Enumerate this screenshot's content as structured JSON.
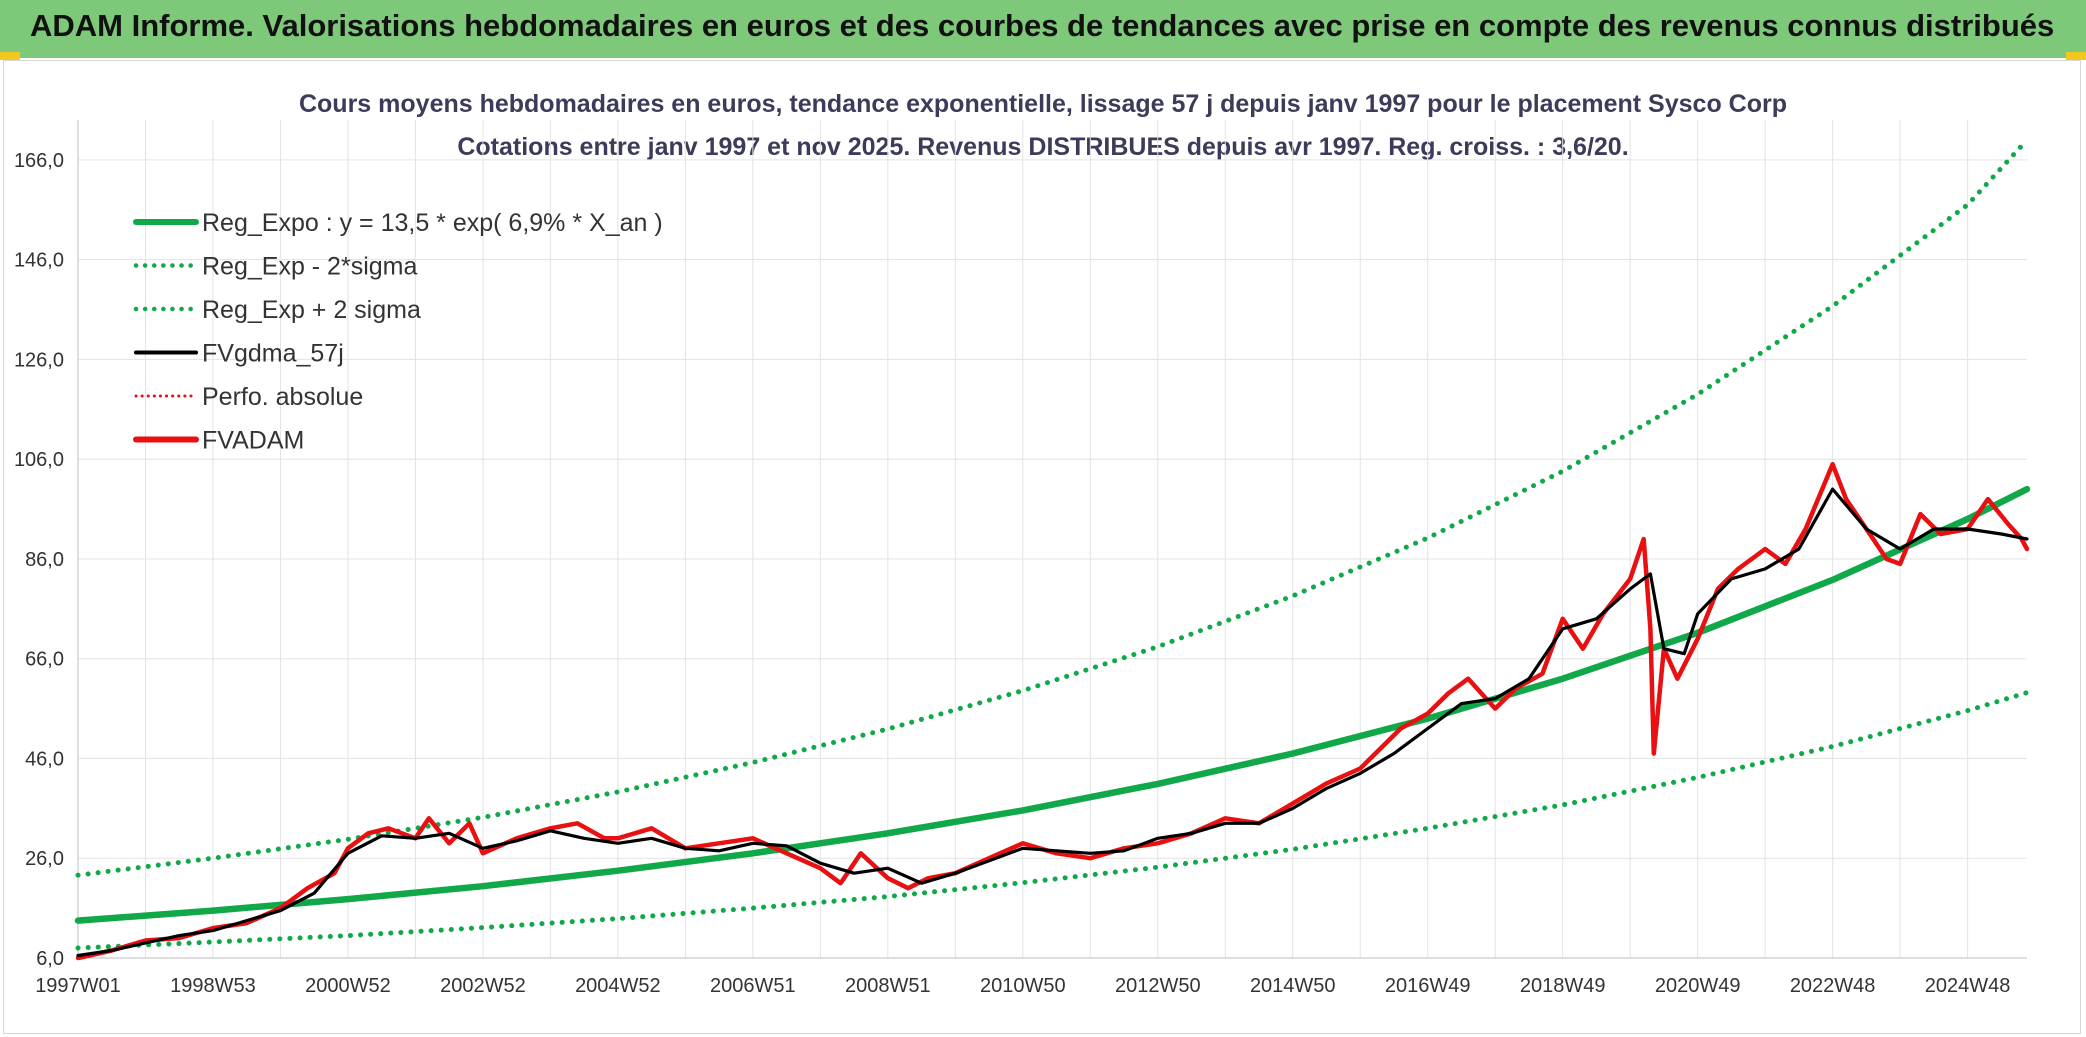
{
  "banner": {
    "title": "ADAM Informe. Valorisations hebdomadaires en euros et des courbes de tendances avec prise en compte des revenus connus distribués"
  },
  "colors": {
    "banner": "#7ec87a",
    "reg": "#11a84a",
    "fvgdma": "#000000",
    "fvadam": "#e81010",
    "perfo": "#e81010"
  },
  "chart_data": {
    "type": "line",
    "title": "Cours moyens hebdomadaires en euros, tendance exponentielle, lissage 57 j depuis janv 1997 pour le placement Sysco Corp",
    "subtitle": "Cotations entre janv 1997 et nov 2025. Revenus DISTRIBUES depuis avr 1997. Reg. croiss. : 3,6/20.",
    "xlim": [
      1997.0,
      2025.88
    ],
    "ylim": [
      6,
      174
    ],
    "y_ticks": [
      6,
      26,
      46,
      66,
      86,
      106,
      126,
      146,
      166
    ],
    "y_tick_labels": [
      "6,0",
      "26,0",
      "46,0",
      "66,0",
      "86,0",
      "106,0",
      "126,0",
      "146,0",
      "166,0"
    ],
    "x_ticks": [
      {
        "label": "1997W01",
        "x": 1997.0
      },
      {
        "label": "1998W53",
        "x": 1999.0
      },
      {
        "label": "2000W52",
        "x": 2001.0
      },
      {
        "label": "2002W52",
        "x": 2003.0
      },
      {
        "label": "2004W52",
        "x": 2005.0
      },
      {
        "label": "2006W51",
        "x": 2007.0
      },
      {
        "label": "2008W51",
        "x": 2009.0
      },
      {
        "label": "2010W50",
        "x": 2011.0
      },
      {
        "label": "2012W50",
        "x": 2013.0
      },
      {
        "label": "2014W50",
        "x": 2015.0
      },
      {
        "label": "2016W49",
        "x": 2017.0
      },
      {
        "label": "2018W49",
        "x": 2019.0
      },
      {
        "label": "2020W49",
        "x": 2021.0
      },
      {
        "label": "2022W48",
        "x": 2023.0
      },
      {
        "label": "2024W48",
        "x": 2025.0
      }
    ],
    "grid": true,
    "legend_position": "top-left",
    "series": [
      {
        "name": "Reg_Expo : y = 13,5 * exp( 6,9% *  X_an )",
        "style": "solid-thick",
        "color": "#11a84a",
        "x": [
          1997,
          1999,
          2001,
          2003,
          2005,
          2007,
          2009,
          2011,
          2013,
          2015,
          2017,
          2019,
          2021,
          2023,
          2025,
          2025.88
        ],
        "y": [
          13.5,
          15.5,
          17.8,
          20.4,
          23.5,
          27.0,
          31.0,
          35.6,
          40.9,
          47.0,
          54.0,
          62.0,
          71.2,
          81.8,
          94.0,
          100.0
        ]
      },
      {
        "name": "Reg_Exp - 2*sigma",
        "style": "dotted",
        "color": "#11a84a",
        "x": [
          1997,
          1999,
          2001,
          2003,
          2005,
          2007,
          2009,
          2011,
          2013,
          2015,
          2017,
          2019,
          2021,
          2023,
          2025,
          2025.88
        ],
        "y": [
          8.0,
          9.2,
          10.5,
          12.1,
          13.9,
          16.0,
          18.3,
          21.1,
          24.2,
          27.8,
          32.0,
          36.7,
          42.2,
          48.4,
          55.6,
          59.2
        ]
      },
      {
        "name": "Reg_Exp + 2 sigma",
        "style": "dotted",
        "color": "#11a84a",
        "x": [
          1997,
          1999,
          2001,
          2003,
          2005,
          2007,
          2009,
          2011,
          2013,
          2015,
          2017,
          2019,
          2021,
          2023,
          2025,
          2025.88
        ],
        "y": [
          22.6,
          26.0,
          29.8,
          34.2,
          39.3,
          45.2,
          51.9,
          59.6,
          68.4,
          78.6,
          90.2,
          103.6,
          119.0,
          136.7,
          157.0,
          170.0
        ]
      },
      {
        "name": "FVgdma_57j",
        "style": "solid",
        "color": "#000000",
        "x": [
          1997,
          1997.5,
          1998,
          1998.5,
          1999,
          1999.5,
          2000,
          2000.5,
          2001,
          2001.5,
          2002,
          2002.5,
          2003,
          2003.5,
          2004,
          2004.5,
          2005,
          2005.5,
          2006,
          2006.5,
          2007,
          2007.5,
          2008,
          2008.5,
          2009,
          2009.5,
          2010,
          2010.5,
          2011,
          2011.5,
          2012,
          2012.5,
          2013,
          2013.5,
          2014,
          2014.5,
          2015,
          2015.5,
          2016,
          2016.5,
          2017,
          2017.5,
          2018,
          2018.5,
          2019,
          2019.5,
          2020,
          2020.3,
          2020.5,
          2020.8,
          2021,
          2021.5,
          2022,
          2022.5,
          2023,
          2023.5,
          2024,
          2024.5,
          2025,
          2025.5,
          2025.88
        ],
        "y": [
          6.5,
          7.5,
          9,
          10.5,
          11.5,
          13.5,
          15.5,
          19,
          27,
          30.5,
          30,
          31,
          28,
          29.5,
          31.5,
          30,
          29,
          30,
          28,
          27.5,
          29,
          28.5,
          25,
          23,
          24,
          21,
          23,
          25.5,
          28,
          27.5,
          27,
          27.5,
          30,
          31,
          33,
          33,
          36,
          40,
          43,
          47,
          52,
          57,
          58,
          62,
          72,
          74,
          80,
          83,
          68,
          67,
          75,
          82,
          84,
          88,
          100,
          92,
          88,
          92,
          92,
          91,
          90
        ]
      },
      {
        "name": "Perfo. absolue",
        "style": "dotted",
        "color": "#e81010",
        "x": [
          1997,
          1997.5,
          1998,
          1998.5,
          1999,
          1999.5,
          2000,
          2000.5,
          2001,
          2001.5,
          2002,
          2002.5,
          2003,
          2003.5,
          2004,
          2004.5,
          2005,
          2005.5,
          2006,
          2006.5,
          2007,
          2007.5,
          2008,
          2008.5,
          2009,
          2009.5,
          2010,
          2010.5,
          2011,
          2011.5,
          2012,
          2012.5,
          2013,
          2013.5,
          2014,
          2014.5,
          2015,
          2015.5,
          2016,
          2016.5,
          2017,
          2017.5,
          2018,
          2018.5,
          2019,
          2019.5,
          2020,
          2020.3,
          2020.5,
          2020.8,
          2021,
          2021.5,
          2022,
          2022.5,
          2023,
          2023.5,
          2024,
          2024.5,
          2025,
          2025.5,
          2025.88
        ],
        "y": [
          6.5,
          7.5,
          9,
          10.5,
          11.5,
          13.5,
          15.5,
          19,
          27,
          30.5,
          30,
          31,
          28,
          29.5,
          31.5,
          30,
          29,
          30,
          28,
          27.5,
          29,
          28.5,
          25,
          23,
          24,
          21,
          23,
          25.5,
          28,
          27.5,
          27,
          27.5,
          30,
          31,
          33,
          33,
          36,
          40,
          43,
          47,
          52,
          57,
          58,
          62,
          72,
          74,
          80,
          83,
          68,
          67,
          75,
          82,
          84,
          88,
          100,
          92,
          88,
          92,
          92,
          91,
          90
        ]
      },
      {
        "name": "FVADAM",
        "style": "solid-thick",
        "color": "#e81010",
        "x": [
          1997,
          1997.5,
          1998,
          1998.5,
          1999,
          1999.5,
          2000,
          2000.4,
          2000.8,
          2001,
          2001.3,
          2001.6,
          2002,
          2002.2,
          2002.5,
          2002.8,
          2003,
          2003.5,
          2004,
          2004.4,
          2004.8,
          2005,
          2005.5,
          2006,
          2006.5,
          2007,
          2007.5,
          2008,
          2008.3,
          2008.6,
          2009,
          2009.3,
          2009.6,
          2010,
          2010.5,
          2011,
          2011.5,
          2012,
          2012.5,
          2013,
          2013.5,
          2014,
          2014.5,
          2015,
          2015.5,
          2016,
          2016.3,
          2016.6,
          2017,
          2017.3,
          2017.6,
          2018,
          2018.3,
          2018.7,
          2019,
          2019.3,
          2019.6,
          2020,
          2020.2,
          2020.3,
          2020.35,
          2020.5,
          2020.7,
          2021,
          2021.3,
          2021.6,
          2022,
          2022.3,
          2022.6,
          2023,
          2023.2,
          2023.5,
          2023.8,
          2024,
          2024.3,
          2024.6,
          2025,
          2025.3,
          2025.6,
          2025.8,
          2025.88
        ],
        "y": [
          6,
          7.5,
          9.5,
          10,
          12,
          13,
          16,
          20,
          23,
          28,
          31,
          32,
          30,
          34,
          29,
          33,
          27,
          30,
          32,
          33,
          30,
          30,
          32,
          28,
          29,
          30,
          27,
          24,
          21,
          27,
          22,
          20,
          22,
          23,
          26,
          29,
          27,
          26,
          28,
          29,
          31,
          34,
          33,
          37,
          41,
          44,
          48,
          52,
          55,
          59,
          62,
          56,
          60,
          63,
          74,
          68,
          75,
          82,
          90,
          72,
          47,
          68,
          62,
          70,
          80,
          84,
          88,
          85,
          92,
          105,
          98,
          92,
          86,
          85,
          95,
          91,
          92,
          98,
          93,
          90,
          88
        ]
      }
    ]
  }
}
